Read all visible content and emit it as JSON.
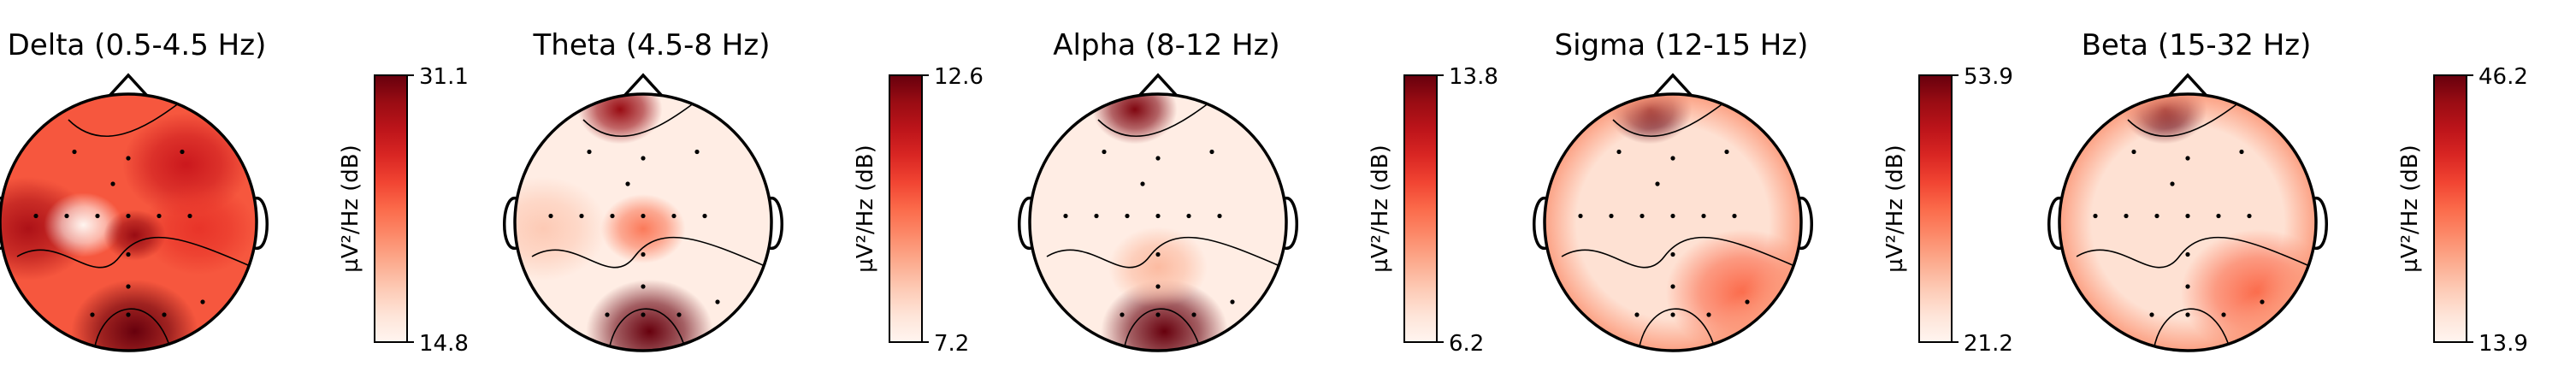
{
  "chart_data": [
    {
      "type": "heatmap",
      "title": "Delta (0.5-4.5 Hz)",
      "colorbar": {
        "label": "µV²/Hz (dB)",
        "max": 31.1,
        "min": 14.8,
        "max_label": "31.1",
        "min_label": "14.8"
      },
      "hotspots": [
        {
          "region": "left-temporal",
          "level": 0.85
        },
        {
          "region": "right-frontal",
          "level": 0.75
        },
        {
          "region": "right-central",
          "level": 0.65
        },
        {
          "region": "occipital",
          "level": 1.0
        },
        {
          "region": "left-frontal",
          "level": 0.55
        },
        {
          "region": "left-central",
          "level": 0.0
        },
        {
          "region": "center-right",
          "level": 0.9
        }
      ]
    },
    {
      "type": "heatmap",
      "title": "Theta (4.5-8 Hz)",
      "colorbar": {
        "label": "µV²/Hz (dB)",
        "max": 12.6,
        "min": 7.2,
        "max_label": "12.6",
        "min_label": "7.2"
      },
      "hotspots": [
        {
          "region": "occipital",
          "level": 1.0
        },
        {
          "region": "frontal-pole",
          "level": 0.9
        },
        {
          "region": "center",
          "level": 0.45
        },
        {
          "region": "left-temporal",
          "level": 0.2
        }
      ]
    },
    {
      "type": "heatmap",
      "title": "Alpha (8-12 Hz)",
      "colorbar": {
        "label": "µV²/Hz (dB)",
        "max": 13.8,
        "min": 6.2,
        "max_label": "13.8",
        "min_label": "6.2"
      },
      "hotspots": [
        {
          "region": "occipital",
          "level": 1.0
        },
        {
          "region": "frontal-pole",
          "level": 0.95
        },
        {
          "region": "parietal",
          "level": 0.25
        }
      ]
    },
    {
      "type": "heatmap",
      "title": "Sigma (12-15 Hz)",
      "colorbar": {
        "label": "µV²/Hz (dB)",
        "max": 53.9,
        "min": 21.2,
        "max_label": "53.9",
        "min_label": "21.2"
      },
      "hotspots": [
        {
          "region": "frontal-pole",
          "level": 1.0
        },
        {
          "region": "right-parietal",
          "level": 0.5
        },
        {
          "region": "rim",
          "level": 0.35
        }
      ]
    },
    {
      "type": "heatmap",
      "title": "Beta (15-32 Hz)",
      "colorbar": {
        "label": "µV²/Hz (dB)",
        "max": 46.2,
        "min": 13.9,
        "max_label": "46.2",
        "min_label": "13.9"
      },
      "hotspots": [
        {
          "region": "frontal-pole",
          "level": 1.0
        },
        {
          "region": "right-parietal",
          "level": 0.5
        },
        {
          "region": "rim",
          "level": 0.35
        }
      ]
    }
  ],
  "colors": {
    "low": "#fff5f0",
    "mid": "#fb6a4a",
    "high": "#67000d",
    "outline": "#000000"
  }
}
